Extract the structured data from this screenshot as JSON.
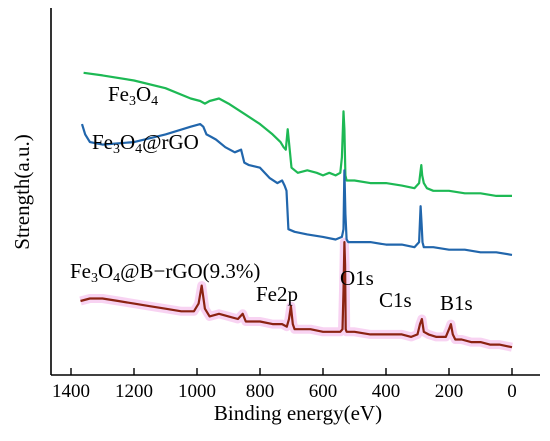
{
  "chart_data": {
    "type": "line",
    "xlabel": "Binding energy(eV)",
    "ylabel": "Strength(a.u.)",
    "xlim": [
      1400,
      0
    ],
    "x_ticks": [
      1400,
      1200,
      1000,
      800,
      600,
      400,
      200,
      0
    ],
    "x_tick_labels": [
      "1400",
      "1200",
      "1000",
      "800",
      "600",
      "400",
      "200",
      "0"
    ],
    "grid": false,
    "series": [
      {
        "key": "fe3o4",
        "label_main": "Fe",
        "label_sub1": "3",
        "label_mid": "O",
        "label_sub2": "4",
        "label_tail": "",
        "color": "#1db954",
        "x": [
          1360,
          1300,
          1200,
          1100,
          1020,
          990,
          975,
          960,
          930,
          900,
          850,
          800,
          760,
          735,
          725,
          718,
          712,
          700,
          680,
          650,
          620,
          600,
          580,
          560,
          545,
          540,
          535,
          532,
          529,
          525,
          520,
          500,
          450,
          400,
          350,
          310,
          295,
          288,
          285,
          280,
          270,
          250,
          200,
          150,
          100,
          50,
          0
        ],
        "y": [
          0.8,
          0.79,
          0.77,
          0.74,
          0.7,
          0.69,
          0.68,
          0.69,
          0.7,
          0.68,
          0.64,
          0.6,
          0.56,
          0.53,
          0.51,
          0.5,
          0.58,
          0.43,
          0.41,
          0.42,
          0.41,
          0.4,
          0.41,
          0.4,
          0.41,
          0.47,
          0.65,
          0.58,
          0.4,
          0.38,
          0.38,
          0.38,
          0.37,
          0.37,
          0.36,
          0.35,
          0.37,
          0.44,
          0.4,
          0.37,
          0.35,
          0.34,
          0.34,
          0.33,
          0.33,
          0.32,
          0.32
        ]
      },
      {
        "key": "fe3o4_rgo",
        "label_main": "Fe",
        "label_sub1": "3",
        "label_mid": "O",
        "label_sub2": "4",
        "label_tail": "@rGO",
        "color": "#2166ac",
        "x": [
          1365,
          1355,
          1340,
          1300,
          1200,
          1100,
          1020,
          990,
          980,
          970,
          955,
          940,
          910,
          880,
          860,
          850,
          835,
          800,
          770,
          745,
          730,
          722,
          716,
          710,
          690,
          650,
          600,
          560,
          540,
          535,
          532,
          529,
          525,
          520,
          500,
          450,
          400,
          350,
          310,
          295,
          290,
          287,
          284,
          280,
          270,
          250,
          200,
          150,
          100,
          50,
          0
        ],
        "y": [
          0.6,
          0.56,
          0.53,
          0.52,
          0.53,
          0.56,
          0.59,
          0.6,
          0.59,
          0.56,
          0.55,
          0.54,
          0.51,
          0.49,
          0.5,
          0.45,
          0.44,
          0.43,
          0.39,
          0.37,
          0.38,
          0.36,
          0.34,
          0.19,
          0.18,
          0.17,
          0.16,
          0.15,
          0.16,
          0.19,
          0.42,
          0.25,
          0.15,
          0.14,
          0.14,
          0.14,
          0.13,
          0.13,
          0.12,
          0.14,
          0.28,
          0.21,
          0.14,
          0.12,
          0.12,
          0.12,
          0.11,
          0.11,
          0.1,
          0.1,
          0.09
        ]
      },
      {
        "key": "fe3o4_b_rgo",
        "label_main": "Fe",
        "label_sub1": "3",
        "label_mid": "O",
        "label_sub2": "4",
        "label_tail": "@B−rGO(9.3%)",
        "color": "#8b2312",
        "x": [
          1370,
          1340,
          1300,
          1250,
          1200,
          1150,
          1100,
          1050,
          1010,
          995,
          985,
          975,
          960,
          930,
          900,
          870,
          855,
          845,
          830,
          800,
          760,
          730,
          715,
          708,
          702,
          696,
          690,
          670,
          640,
          600,
          565,
          545,
          538,
          535,
          532,
          530,
          528,
          525,
          520,
          500,
          450,
          400,
          350,
          320,
          300,
          292,
          286,
          280,
          265,
          240,
          210,
          200,
          194,
          188,
          180,
          160,
          130,
          100,
          70,
          40,
          0
        ],
        "y": [
          -0.09,
          -0.08,
          -0.08,
          -0.09,
          -0.1,
          -0.11,
          -0.12,
          -0.13,
          -0.13,
          -0.1,
          -0.03,
          -0.12,
          -0.15,
          -0.14,
          -0.15,
          -0.16,
          -0.14,
          -0.17,
          -0.17,
          -0.17,
          -0.18,
          -0.18,
          -0.19,
          -0.16,
          -0.11,
          -0.18,
          -0.2,
          -0.2,
          -0.2,
          -0.21,
          -0.21,
          -0.21,
          -0.2,
          -0.05,
          0.14,
          0.05,
          -0.2,
          -0.21,
          -0.21,
          -0.21,
          -0.22,
          -0.22,
          -0.22,
          -0.23,
          -0.22,
          -0.18,
          -0.16,
          -0.21,
          -0.22,
          -0.23,
          -0.23,
          -0.2,
          -0.18,
          -0.22,
          -0.24,
          -0.24,
          -0.25,
          -0.25,
          -0.26,
          -0.26,
          -0.27
        ]
      }
    ],
    "annotations": [
      {
        "key": "fe2p",
        "text": "Fe2p"
      },
      {
        "key": "o1s",
        "text": "O1s"
      },
      {
        "key": "c1s",
        "text": "C1s"
      },
      {
        "key": "b1s",
        "text": "B1s"
      }
    ]
  }
}
